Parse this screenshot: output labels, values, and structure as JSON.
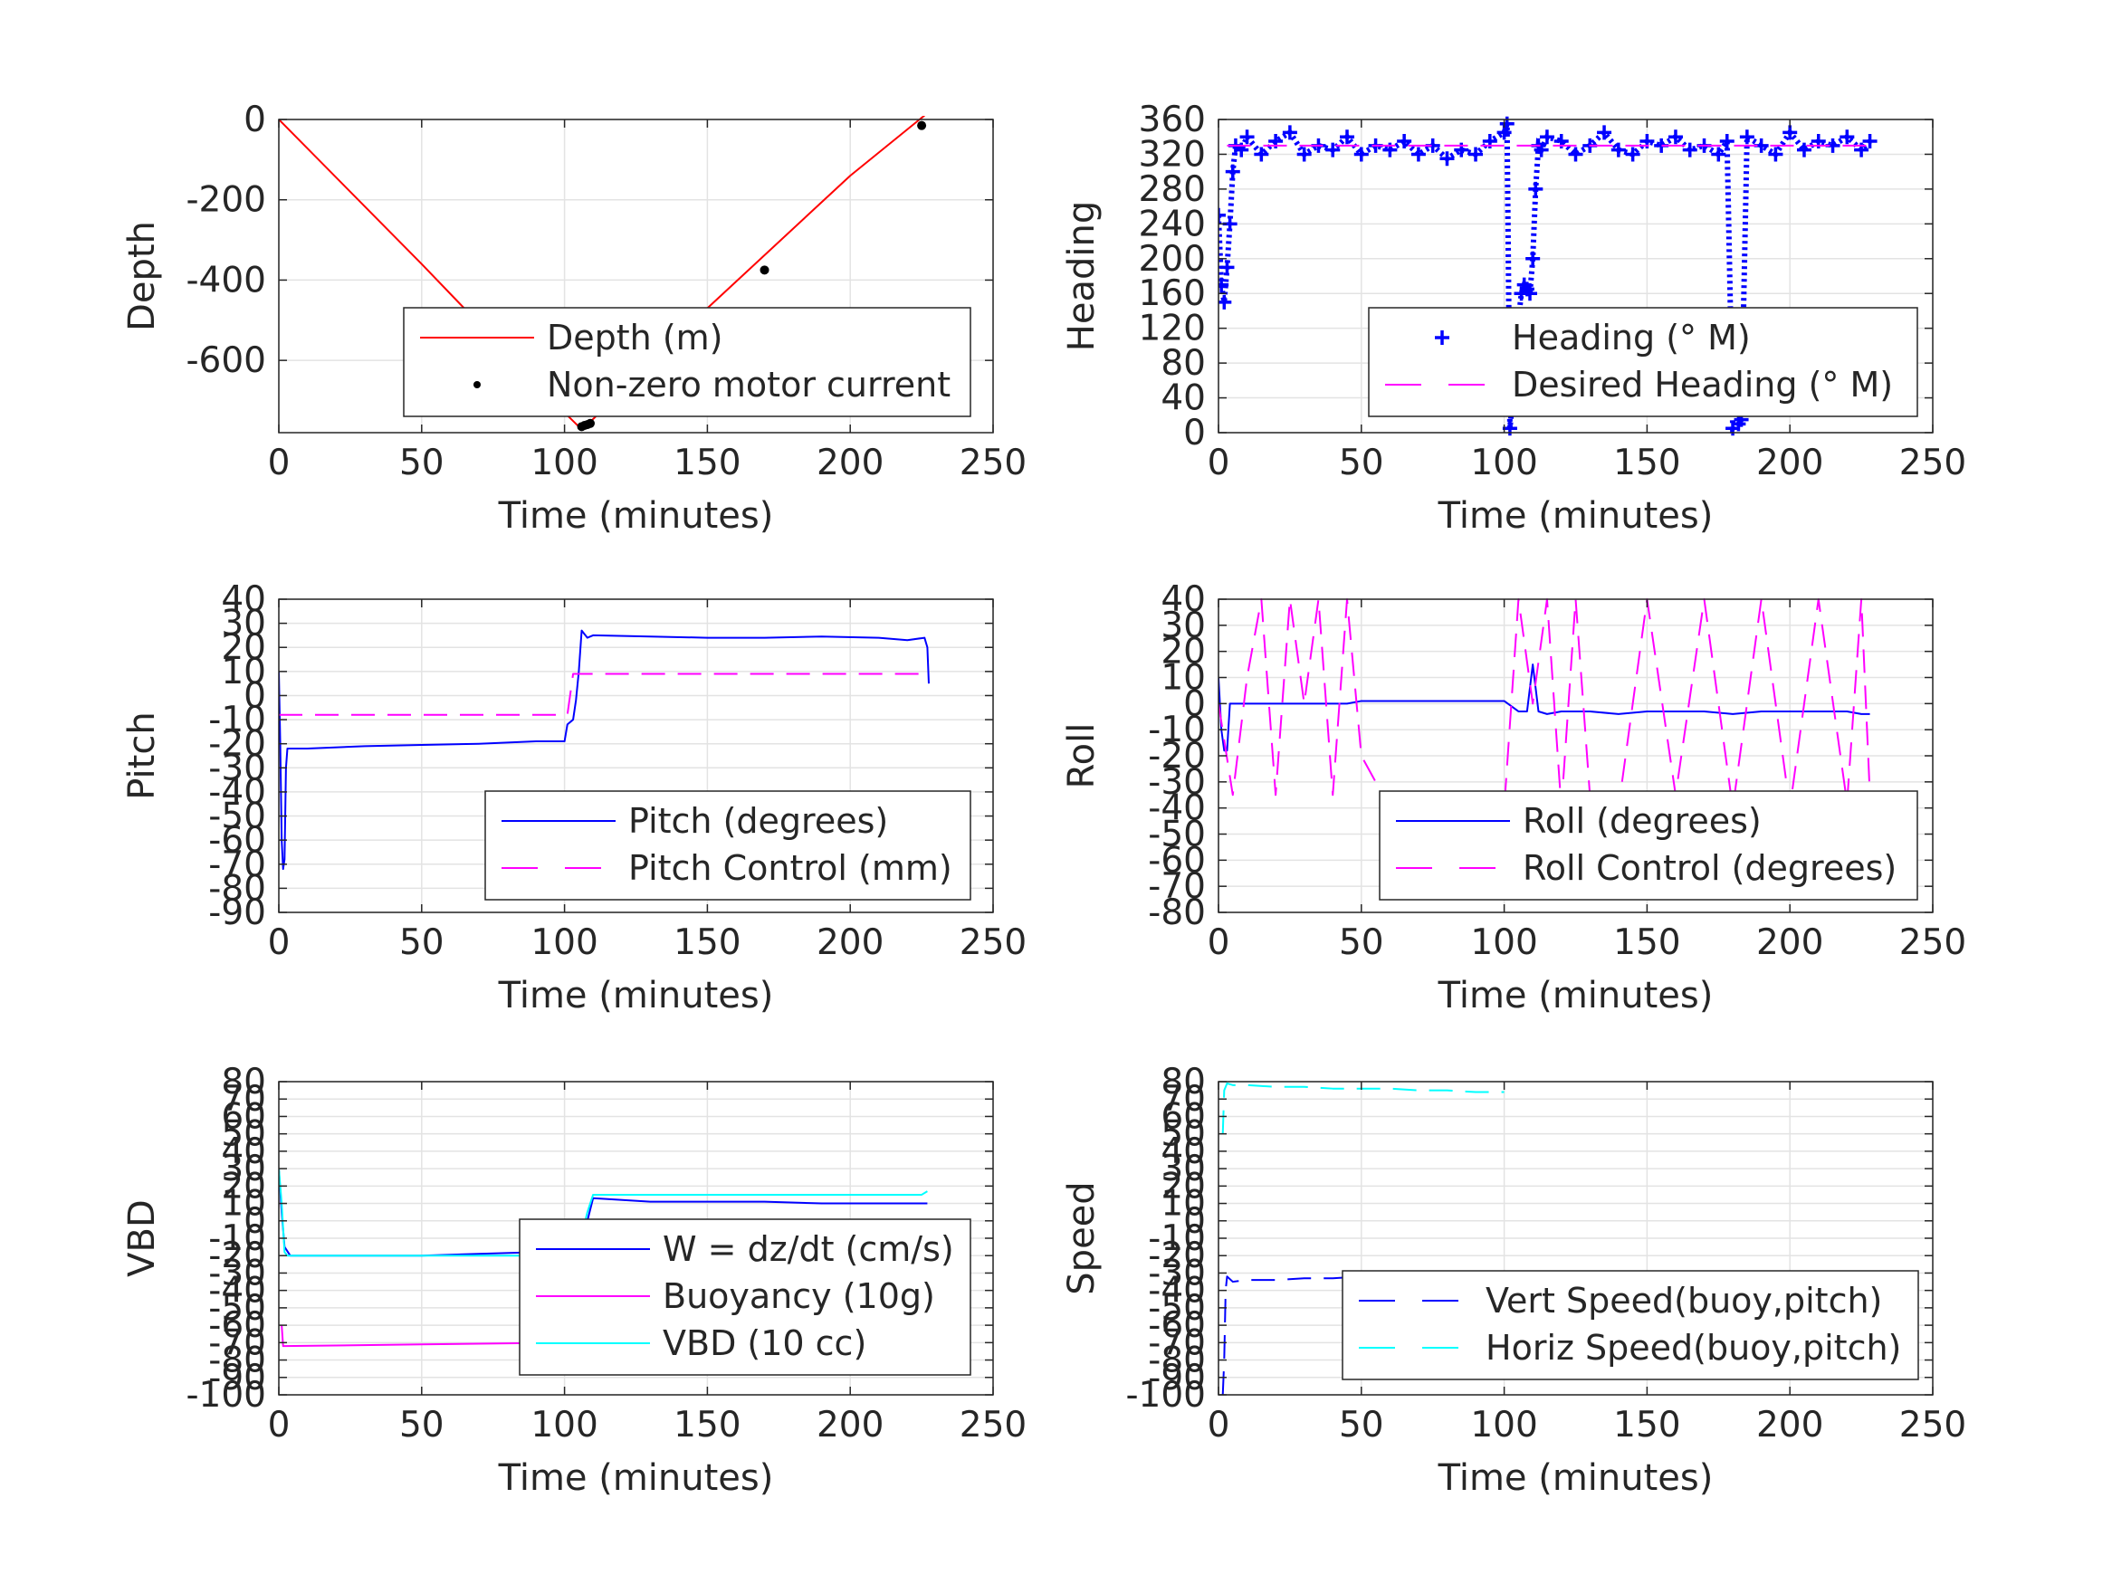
{
  "chart_data": [
    {
      "type": "line",
      "xlabel": "Time (minutes)",
      "ylabel": "Depth",
      "xlim": [
        0,
        250
      ],
      "ylim": [
        -780,
        0
      ],
      "xticks": [
        0,
        50,
        100,
        150,
        200,
        250
      ],
      "yticks": [
        0,
        -200,
        -400,
        -600
      ],
      "grid": true,
      "legend_placement": "bottom-right",
      "series": [
        {
          "name": "Depth (m)",
          "style": "solid",
          "marker": "none",
          "color": "#ff0000",
          "x": [
            0,
            50,
            100,
            105,
            108,
            150,
            200,
            226
          ],
          "y": [
            0,
            -360,
            -730,
            -765,
            -760,
            -470,
            -140,
            10
          ]
        },
        {
          "name": "Non-zero motor current",
          "style": "none",
          "marker": "dot",
          "color": "#000000",
          "x": [
            106,
            107,
            108,
            109,
            170,
            225
          ],
          "y": [
            -765,
            -762,
            -760,
            -757,
            -375,
            -15
          ]
        }
      ]
    },
    {
      "type": "scatter",
      "xlabel": "Time (minutes)",
      "ylabel": "Heading",
      "xlim": [
        0,
        250
      ],
      "ylim": [
        0,
        360
      ],
      "xticks": [
        0,
        50,
        100,
        150,
        200,
        250
      ],
      "yticks": [
        0,
        40,
        80,
        120,
        160,
        200,
        240,
        280,
        320,
        360
      ],
      "grid": true,
      "legend_placement": "bottom-right",
      "series": [
        {
          "name": "Heading (° M)",
          "style": "none",
          "marker": "plus",
          "color": "#0000ff",
          "x": [
            0,
            1,
            2,
            3,
            4,
            5,
            6,
            8,
            10,
            15,
            20,
            25,
            30,
            35,
            40,
            45,
            50,
            55,
            60,
            65,
            70,
            75,
            80,
            85,
            90,
            95,
            100,
            101,
            102,
            103,
            104,
            105,
            106,
            107,
            108,
            109,
            110,
            111,
            112,
            113,
            115,
            120,
            125,
            130,
            135,
            140,
            145,
            150,
            155,
            160,
            165,
            170,
            175,
            178,
            180,
            182,
            183,
            185,
            190,
            195,
            200,
            205,
            210,
            215,
            220,
            225,
            228
          ],
          "y": [
            250,
            170,
            150,
            190,
            240,
            300,
            330,
            325,
            340,
            320,
            335,
            345,
            320,
            330,
            325,
            340,
            320,
            330,
            325,
            335,
            320,
            330,
            315,
            325,
            320,
            335,
            345,
            355,
            5,
            40,
            90,
            130,
            160,
            170,
            165,
            160,
            200,
            280,
            330,
            325,
            340,
            335,
            320,
            330,
            345,
            325,
            320,
            335,
            330,
            340,
            325,
            330,
            320,
            335,
            5,
            10,
            15,
            340,
            330,
            320,
            345,
            325,
            335,
            330,
            340,
            325,
            335
          ]
        },
        {
          "name": "Desired Heading (° M)",
          "style": "dash",
          "marker": "none",
          "color": "#ff00ff",
          "x": [
            3,
            100,
            110,
            228
          ],
          "y": [
            330,
            330,
            330,
            330
          ]
        }
      ]
    },
    {
      "type": "line",
      "xlabel": "Time (minutes)",
      "ylabel": "Pitch",
      "xlim": [
        0,
        250
      ],
      "ylim": [
        -90,
        40
      ],
      "xticks": [
        0,
        50,
        100,
        150,
        200,
        250
      ],
      "yticks": [
        40,
        30,
        20,
        10,
        0,
        -10,
        -20,
        -30,
        -40,
        -50,
        -60,
        -70,
        -80,
        -90
      ],
      "grid": true,
      "legend_placement": "bottom-right",
      "series": [
        {
          "name": "Pitch (degrees)",
          "style": "solid",
          "marker": "none",
          "color": "#0000ff",
          "x": [
            0,
            0.5,
            1,
            1.5,
            2,
            2.5,
            3,
            10,
            30,
            50,
            70,
            90,
            100,
            101,
            103,
            104,
            105,
            106,
            108,
            110,
            130,
            150,
            170,
            190,
            210,
            220,
            226,
            227,
            227.5
          ],
          "y": [
            10,
            -20,
            -60,
            -72,
            -68,
            -30,
            -22,
            -22,
            -21,
            -20.5,
            -20,
            -19,
            -19,
            -12,
            -10,
            -2,
            10,
            27,
            24,
            25,
            24.5,
            24,
            24,
            24.5,
            24,
            23,
            24,
            20,
            5
          ]
        },
        {
          "name": "Pitch Control (mm)",
          "style": "dash",
          "marker": "none",
          "color": "#ff00ff",
          "x": [
            0,
            101,
            103,
            105,
            227
          ],
          "y": [
            -8,
            -8,
            9,
            9,
            9
          ]
        }
      ]
    },
    {
      "type": "line",
      "xlabel": "Time (minutes)",
      "ylabel": "Roll",
      "xlim": [
        0,
        250
      ],
      "ylim": [
        -80,
        40
      ],
      "xticks": [
        0,
        50,
        100,
        150,
        200,
        250
      ],
      "yticks": [
        40,
        30,
        20,
        10,
        0,
        -10,
        -20,
        -30,
        -40,
        -50,
        -60,
        -70,
        -80
      ],
      "grid": true,
      "legend_placement": "bottom-right",
      "series": [
        {
          "name": "Roll (degrees)",
          "style": "solid",
          "marker": "none",
          "color": "#0000ff",
          "x": [
            0,
            1,
            2,
            3,
            4,
            5,
            10,
            15,
            20,
            25,
            30,
            35,
            40,
            45,
            50,
            55,
            60,
            65,
            70,
            75,
            80,
            85,
            90,
            95,
            100,
            105,
            108,
            110,
            112,
            115,
            120,
            130,
            140,
            150,
            160,
            170,
            180,
            190,
            200,
            210,
            220,
            225,
            228
          ],
          "y": [
            10,
            -10,
            -18,
            -18,
            0,
            0,
            0,
            0,
            0,
            0,
            0,
            0,
            0,
            0,
            1,
            1,
            1,
            1,
            1,
            1,
            1,
            1,
            1,
            1,
            1,
            -3,
            -3,
            15,
            -3,
            -4,
            -3,
            -3,
            -4,
            -3,
            -3,
            -3,
            -4,
            -3,
            -3,
            -3,
            -3,
            -4,
            -4
          ]
        },
        {
          "name": "Roll Control (degrees)",
          "style": "dash",
          "marker": "none",
          "color": "#ff00ff",
          "x": [
            0,
            5,
            10,
            15,
            20,
            25,
            30,
            35,
            40,
            45,
            50,
            60,
            70,
            80,
            90,
            100,
            105,
            110,
            115,
            120,
            125,
            130,
            140,
            150,
            160,
            170,
            180,
            190,
            200,
            210,
            220,
            225,
            228
          ],
          "y": [
            0,
            -35,
            10,
            40,
            -35,
            40,
            0,
            40,
            -35,
            40,
            -20,
            -40,
            -35,
            -40,
            -40,
            -40,
            40,
            0,
            40,
            -40,
            40,
            -35,
            -40,
            40,
            -35,
            40,
            -40,
            40,
            -40,
            40,
            -38,
            40,
            -35
          ]
        }
      ]
    },
    {
      "type": "line",
      "xlabel": "Time (minutes)",
      "ylabel": "VBD",
      "xlim": [
        0,
        250
      ],
      "ylim": [
        -100,
        80
      ],
      "xticks": [
        0,
        50,
        100,
        150,
        200,
        250
      ],
      "yticks": [
        80,
        70,
        60,
        50,
        40,
        30,
        20,
        10,
        0,
        -10,
        -20,
        -30,
        -40,
        -50,
        -60,
        -70,
        -80,
        -90,
        -100
      ],
      "grid": true,
      "legend_placement": "bottom-right",
      "series": [
        {
          "name": "W = dz/dt (cm/s)",
          "style": "solid",
          "marker": "none",
          "color": "#0000ff",
          "x": [
            0,
            1,
            2,
            4,
            10,
            30,
            50,
            70,
            90,
            100,
            103,
            105,
            108,
            110,
            130,
            150,
            170,
            190,
            210,
            220,
            226,
            227
          ],
          "y": [
            30,
            5,
            -15,
            -20,
            -20,
            -20,
            -20,
            -19,
            -18,
            -18,
            -16,
            -10,
            0,
            13,
            11,
            11,
            11,
            10,
            10,
            10,
            10,
            10
          ]
        },
        {
          "name": "Buoyancy (10g)",
          "style": "solid",
          "marker": "none",
          "color": "#ff00ff",
          "x": [
            1,
            1.5,
            2,
            50,
            100
          ],
          "y": [
            -60,
            -72,
            -72,
            -71,
            -70
          ]
        },
        {
          "name": "VBD (10 cc)",
          "style": "solid",
          "marker": "none",
          "color": "#00ffff",
          "x": [
            0,
            1,
            2,
            3,
            10,
            50,
            100,
            105,
            108,
            110,
            150,
            200,
            225,
            227
          ],
          "y": [
            30,
            10,
            -18,
            -20,
            -20,
            -20,
            -20,
            -15,
            5,
            15,
            15,
            15,
            15,
            17
          ]
        }
      ]
    },
    {
      "type": "line",
      "xlabel": "Time (minutes)",
      "ylabel": "Speed",
      "xlim": [
        0,
        250
      ],
      "ylim": [
        -100,
        80
      ],
      "xticks": [
        0,
        50,
        100,
        150,
        200,
        250
      ],
      "yticks": [
        80,
        70,
        60,
        50,
        40,
        30,
        20,
        10,
        0,
        -10,
        -20,
        -30,
        -40,
        -50,
        -60,
        -70,
        -80,
        -90,
        -100
      ],
      "grid": true,
      "legend_placement": "bottom-right",
      "series": [
        {
          "name": "Vert Speed(buoy,pitch)",
          "style": "dash",
          "marker": "none",
          "color": "#0000ff",
          "x": [
            1.5,
            2,
            2.5,
            3,
            5,
            10,
            20,
            30,
            40,
            50,
            60,
            70,
            80,
            90,
            100
          ],
          "y": [
            -100,
            -80,
            -40,
            -32,
            -35,
            -34,
            -34,
            -33,
            -33,
            -32,
            -32,
            -31,
            -31,
            -30,
            -30
          ]
        },
        {
          "name": "Horiz Speed(buoy,pitch)",
          "style": "dash",
          "marker": "none",
          "color": "#00ffff",
          "x": [
            1.5,
            2,
            3,
            5,
            10,
            20,
            30,
            40,
            50,
            60,
            70,
            80,
            90,
            100
          ],
          "y": [
            50,
            75,
            79,
            78,
            78,
            77,
            77,
            76,
            76,
            76,
            75,
            75,
            74,
            74
          ]
        }
      ]
    }
  ]
}
